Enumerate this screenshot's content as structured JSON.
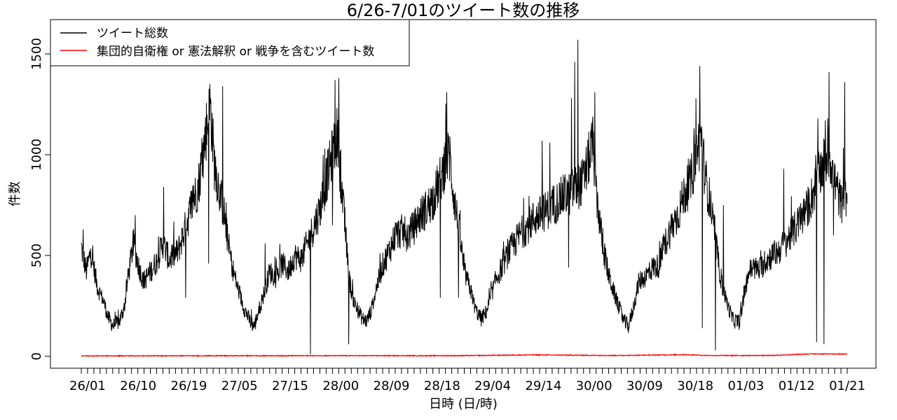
{
  "chart_data": {
    "type": "line",
    "title": "6/26-7/01のツイート数の推移",
    "xlabel": "日時 (日/時)",
    "ylabel": "件数",
    "ylim": [
      0,
      1650
    ],
    "yticks": [
      0,
      500,
      1000,
      1500
    ],
    "xticks": [
      "26/01",
      "26/10",
      "26/19",
      "27/05",
      "27/15",
      "28/00",
      "28/09",
      "28/18",
      "29/04",
      "29/14",
      "30/00",
      "30/09",
      "30/18",
      "01/03",
      "01/12",
      "01/21"
    ],
    "grid": false,
    "legend": "top-left",
    "series": [
      {
        "name": "ツイート総数",
        "color": "#000000",
        "values": [
          [
            0,
            540
          ],
          [
            0.8,
            420
          ],
          [
            1.5,
            520
          ],
          [
            2.6,
            340
          ],
          [
            3.6,
            270
          ],
          [
            4.3,
            190
          ],
          [
            5.1,
            150
          ],
          [
            6.1,
            175
          ],
          [
            6.9,
            250
          ],
          [
            7.4,
            380
          ],
          [
            8.3,
            560
          ],
          [
            9.2,
            440
          ],
          [
            9.9,
            370
          ],
          [
            11,
            420
          ],
          [
            12,
            470
          ],
          [
            13,
            560
          ],
          [
            14,
            480
          ],
          [
            15.4,
            520
          ],
          [
            16.6,
            640
          ],
          [
            17.6,
            750
          ],
          [
            18.6,
            840
          ],
          [
            19.4,
            1000
          ],
          [
            20,
            1150
          ],
          [
            20.6,
            1230
          ],
          [
            21.2,
            950
          ],
          [
            22,
            820
          ],
          [
            22.7,
            720
          ],
          [
            23.3,
            580
          ],
          [
            24,
            450
          ],
          [
            25,
            330
          ],
          [
            25.8,
            250
          ],
          [
            26.9,
            170
          ],
          [
            27.6,
            150
          ],
          [
            28.2,
            220
          ],
          [
            29,
            300
          ],
          [
            30,
            420
          ],
          [
            31,
            390
          ],
          [
            32,
            460
          ],
          [
            33,
            420
          ],
          [
            34,
            500
          ],
          [
            35,
            480
          ],
          [
            36,
            560
          ],
          [
            37,
            640
          ],
          [
            38,
            730
          ],
          [
            39,
            870
          ],
          [
            40,
            1000
          ],
          [
            40.8,
            1100
          ],
          [
            41.3,
            900
          ],
          [
            42,
            640
          ],
          [
            42.6,
            400
          ],
          [
            43.2,
            290
          ],
          [
            44,
            230
          ],
          [
            44.8,
            185
          ],
          [
            45.5,
            175
          ],
          [
            46.2,
            230
          ],
          [
            47,
            340
          ],
          [
            48,
            450
          ],
          [
            49,
            520
          ],
          [
            50,
            600
          ],
          [
            51,
            620
          ],
          [
            52,
            600
          ],
          [
            53,
            640
          ],
          [
            54,
            700
          ],
          [
            55,
            730
          ],
          [
            56,
            780
          ],
          [
            57,
            860
          ],
          [
            58,
            960
          ],
          [
            58.6,
            1000
          ],
          [
            59.4,
            780
          ],
          [
            60.3,
            600
          ],
          [
            61,
            420
          ],
          [
            62,
            330
          ],
          [
            62.8,
            230
          ],
          [
            63.7,
            185
          ],
          [
            64.5,
            220
          ],
          [
            65.3,
            300
          ],
          [
            66,
            380
          ],
          [
            67,
            440
          ],
          [
            68,
            510
          ],
          [
            69,
            560
          ],
          [
            70,
            610
          ],
          [
            71,
            640
          ],
          [
            72,
            680
          ],
          [
            73,
            700
          ],
          [
            74,
            720
          ],
          [
            75,
            750
          ],
          [
            76,
            770
          ],
          [
            77,
            800
          ],
          [
            78,
            820
          ],
          [
            79,
            840
          ],
          [
            80,
            870
          ],
          [
            81,
            1000
          ],
          [
            81.5,
            1060
          ],
          [
            82,
            820
          ],
          [
            83,
            560
          ],
          [
            84,
            400
          ],
          [
            85,
            300
          ],
          [
            85.8,
            230
          ],
          [
            86.5,
            170
          ],
          [
            87.2,
            150
          ],
          [
            88,
            250
          ],
          [
            88.8,
            370
          ],
          [
            90,
            400
          ],
          [
            91,
            440
          ],
          [
            92,
            450
          ],
          [
            93,
            560
          ],
          [
            94,
            640
          ],
          [
            95,
            700
          ],
          [
            96,
            800
          ],
          [
            97,
            860
          ],
          [
            98,
            1000
          ],
          [
            98.7,
            1100
          ],
          [
            99.4,
            880
          ],
          [
            100.2,
            760
          ],
          [
            101,
            560
          ],
          [
            102,
            360
          ],
          [
            103,
            250
          ],
          [
            103.8,
            180
          ],
          [
            104.8,
            170
          ],
          [
            105.6,
            300
          ],
          [
            106.3,
            420
          ],
          [
            107,
            440
          ],
          [
            108,
            430
          ],
          [
            109,
            470
          ],
          [
            110,
            500
          ],
          [
            111,
            520
          ],
          [
            112,
            560
          ],
          [
            113,
            600
          ],
          [
            114,
            650
          ],
          [
            115,
            700
          ],
          [
            116,
            760
          ],
          [
            117,
            850
          ],
          [
            118.5,
            980
          ],
          [
            119.2,
            1000
          ],
          [
            120,
            870
          ],
          [
            121,
            760
          ],
          [
            122,
            800
          ]
        ],
        "spikes": [
          [
            0.3,
            630
          ],
          [
            8.6,
            700
          ],
          [
            13.1,
            840
          ],
          [
            17.9,
            850
          ],
          [
            20.5,
            1350
          ],
          [
            22.5,
            1340
          ],
          [
            29.3,
            560
          ],
          [
            38.8,
            1030
          ],
          [
            40.4,
            1370
          ],
          [
            41,
            1380
          ],
          [
            41.5,
            760
          ],
          [
            42,
            740
          ],
          [
            57.8,
            1040
          ],
          [
            58.2,
            1310
          ],
          [
            58.7,
            1090
          ],
          [
            73.4,
            1070
          ],
          [
            74.6,
            1060
          ],
          [
            78.1,
            1280
          ],
          [
            78.6,
            1460
          ],
          [
            79.1,
            1570
          ],
          [
            81.8,
            1310
          ],
          [
            97.9,
            1280
          ],
          [
            98.5,
            1440
          ],
          [
            102.3,
            750
          ],
          [
            111.9,
            930
          ],
          [
            117.3,
            1180
          ],
          [
            119.1,
            1410
          ],
          [
            121.6,
            1360
          ]
        ],
        "dips": [
          [
            16.6,
            290
          ],
          [
            20.3,
            460
          ],
          [
            24.1,
            450
          ],
          [
            36.5,
            10
          ],
          [
            40,
            650
          ],
          [
            42.6,
            60
          ],
          [
            57.2,
            290
          ],
          [
            60.1,
            290
          ],
          [
            77.6,
            440
          ],
          [
            77.7,
            700
          ],
          [
            98.9,
            140
          ],
          [
            101,
            30
          ],
          [
            117.1,
            70
          ],
          [
            118.3,
            60
          ],
          [
            119.8,
            600
          ]
        ]
      },
      {
        "name": "集団的自衛権 or 憲法解釈 or 戦争を含むツイート数",
        "color": "#ff0000",
        "values": [
          [
            0,
            2
          ],
          [
            40,
            3
          ],
          [
            60,
            3
          ],
          [
            72,
            7
          ],
          [
            85,
            4
          ],
          [
            96,
            8
          ],
          [
            100,
            4
          ],
          [
            110,
            4
          ],
          [
            116,
            12
          ],
          [
            122,
            11
          ]
        ]
      }
    ]
  }
}
